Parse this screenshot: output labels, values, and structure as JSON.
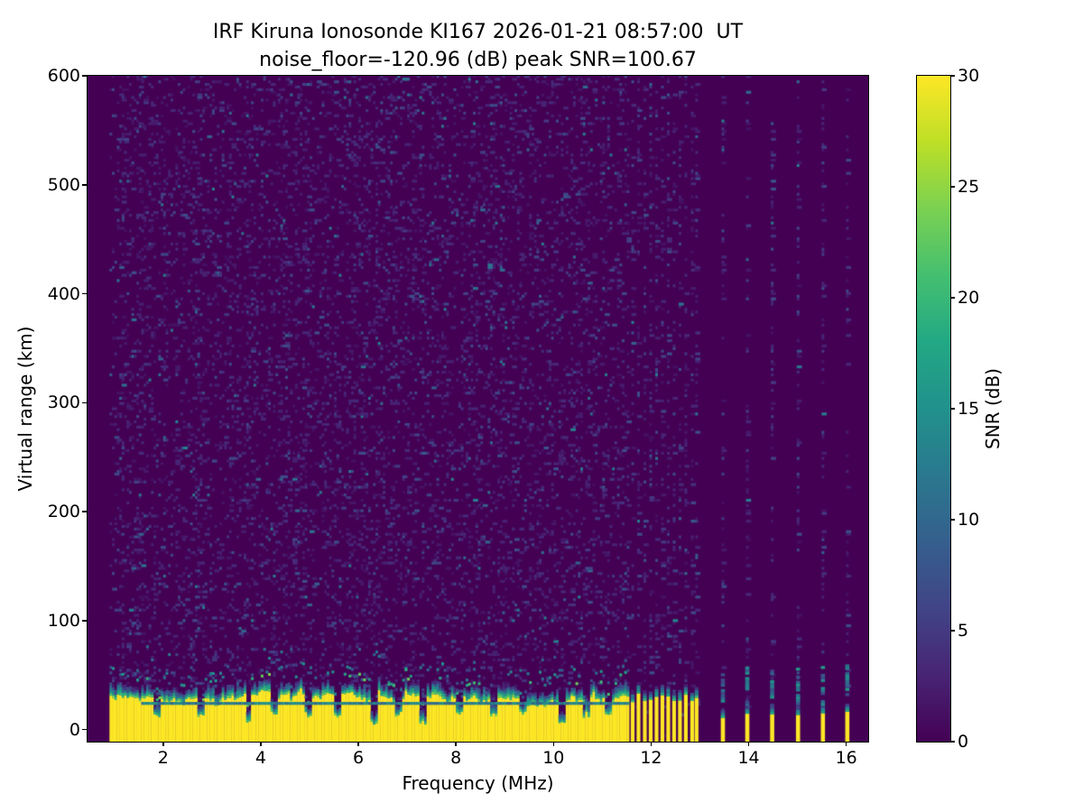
{
  "chart_data": {
    "type": "heatmap",
    "title": "IRF Kiruna Ionosonde KI167 2026-01-21 08:57:00  UT",
    "subtitle": "noise_floor=-120.96 (dB) peak SNR=100.67",
    "station": "KI167",
    "timestamp_ut": "2026-01-21 08:57:00 UT",
    "noise_floor_db": -120.96,
    "peak_snr_db": 100.67,
    "xlabel": "Frequency (MHz)",
    "ylabel": "Virtual range (km)",
    "colorbar_label": "SNR (dB)",
    "xlim": [
      0.45,
      16.45
    ],
    "ylim": [
      -11,
      600
    ],
    "clim": [
      0,
      30
    ],
    "xticks": [
      2,
      4,
      6,
      8,
      10,
      12,
      14,
      16
    ],
    "yticks": [
      0,
      100,
      200,
      300,
      400,
      500,
      600
    ],
    "colorbar_ticks": [
      0,
      5,
      10,
      15,
      20,
      25,
      30
    ],
    "grid": false,
    "legend_position": "right-colorbar",
    "colormap": "viridis",
    "colormap_stops": [
      [
        0.0,
        "#440154"
      ],
      [
        0.1,
        "#482475"
      ],
      [
        0.2,
        "#414487"
      ],
      [
        0.3,
        "#355f8d"
      ],
      [
        0.4,
        "#2a788e"
      ],
      [
        0.5,
        "#21918c"
      ],
      [
        0.6,
        "#22a884"
      ],
      [
        0.7,
        "#44bf70"
      ],
      [
        0.8,
        "#7ad151"
      ],
      [
        0.9,
        "#bddf26"
      ],
      [
        1.0,
        "#fde725"
      ]
    ],
    "sounding": {
      "freq_start_mhz": 0.9,
      "freq_step_mhz": 0.05,
      "range_step_km": 2.4,
      "continuous_sweep_end_mhz": 11.55,
      "ground_echo_top_km": 30,
      "ground_echo_fringe_km": 14,
      "echo_gap_line_km": 23,
      "echo_gap_line_start_mhz": 1.55,
      "deep_notch_freqs_mhz": [
        3.72,
        6.28,
        7.3,
        10.15
      ],
      "notch_freqs_mhz": [
        1.85,
        2.75,
        4.25,
        4.95,
        5.55,
        6.8,
        8.05,
        8.75,
        9.35,
        10.65,
        11.1
      ],
      "discrete_freqs_dense_mhz": [
        11.62,
        11.74,
        11.87,
        11.99,
        12.11,
        12.23,
        12.35,
        12.47,
        12.59,
        12.71,
        12.84,
        12.93
      ],
      "discrete_freqs_sparse_mhz": [
        13.47,
        13.97,
        14.48,
        15.01,
        15.52,
        16.02
      ],
      "noise_seed": 7
    }
  }
}
